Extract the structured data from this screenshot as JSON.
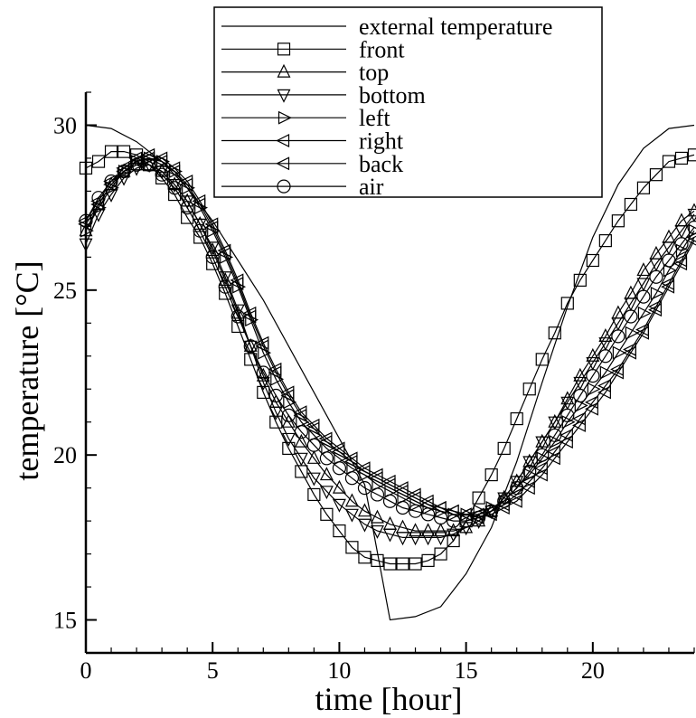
{
  "chart_data": {
    "type": "line",
    "title": "",
    "xlabel": "time [hour]",
    "ylabel": "temperature [°C]",
    "xlim": [
      0,
      24
    ],
    "ylim": [
      14,
      31
    ],
    "x_ticks": [
      0,
      5,
      10,
      15,
      20
    ],
    "y_ticks": [
      15,
      20,
      25,
      30
    ],
    "grid": false,
    "legend_position": "top-right",
    "series": [
      {
        "name": "external temperature",
        "marker": "none",
        "x": [
          0,
          1,
          2,
          3,
          4,
          5,
          6,
          7,
          8,
          9,
          10,
          11,
          12,
          13,
          14,
          15,
          16,
          17,
          18,
          19,
          20,
          21,
          22,
          23,
          24
        ],
        "y": [
          30.0,
          29.9,
          29.5,
          28.9,
          28.1,
          27.1,
          25.9,
          24.7,
          23.3,
          21.9,
          20.5,
          19.1,
          15.0,
          15.1,
          15.4,
          16.4,
          17.8,
          19.8,
          22.2,
          24.5,
          26.6,
          28.2,
          29.3,
          29.9,
          30.0
        ]
      },
      {
        "name": "front",
        "marker": "square",
        "x": [
          0,
          0.5,
          1,
          1.5,
          2,
          2.5,
          3,
          3.5,
          4,
          4.5,
          5,
          5.5,
          6,
          6.5,
          7,
          7.5,
          8,
          8.5,
          9,
          9.5,
          10,
          10.5,
          11,
          11.5,
          12,
          12.5,
          13,
          13.5,
          14,
          14.5,
          15,
          15.5,
          16,
          16.5,
          17,
          17.5,
          18,
          18.5,
          19,
          19.5,
          20,
          20.5,
          21,
          21.5,
          22,
          22.5,
          23,
          23.5,
          24
        ],
        "y": [
          28.7,
          28.9,
          29.2,
          29.2,
          29.1,
          28.8,
          28.4,
          27.9,
          27.2,
          26.6,
          25.8,
          24.9,
          23.9,
          22.9,
          21.9,
          21.0,
          20.2,
          19.5,
          18.8,
          18.2,
          17.7,
          17.2,
          16.9,
          16.8,
          16.7,
          16.7,
          16.7,
          16.8,
          17.0,
          17.4,
          18.0,
          18.7,
          19.4,
          20.2,
          21.1,
          22.0,
          22.9,
          23.7,
          24.6,
          25.3,
          25.9,
          26.5,
          27.1,
          27.6,
          28.1,
          28.5,
          28.9,
          29.0,
          29.1
        ]
      },
      {
        "name": "top",
        "marker": "triangle-up",
        "x": [
          0,
          0.5,
          1,
          1.5,
          2,
          2.5,
          3,
          3.5,
          4,
          4.5,
          5,
          5.5,
          6,
          6.5,
          7,
          7.5,
          8,
          8.5,
          9,
          9.5,
          10,
          10.5,
          11,
          11.5,
          12,
          12.5,
          13,
          13.5,
          14,
          14.5,
          15,
          15.5,
          16,
          16.5,
          17,
          17.5,
          18,
          18.5,
          19,
          19.5,
          20,
          20.5,
          21,
          21.5,
          22,
          22.5,
          23,
          23.5,
          24
        ],
        "y": [
          26.8,
          27.6,
          28.2,
          28.6,
          28.8,
          28.8,
          28.6,
          28.2,
          27.7,
          27.0,
          26.2,
          25.3,
          24.3,
          23.3,
          22.4,
          21.6,
          21.0,
          20.4,
          19.9,
          19.4,
          19.0,
          18.6,
          18.3,
          18.1,
          17.9,
          17.8,
          17.7,
          17.7,
          17.7,
          17.7,
          17.8,
          18.0,
          18.3,
          18.7,
          19.2,
          19.8,
          20.4,
          21.0,
          21.7,
          22.4,
          23.0,
          23.6,
          24.3,
          24.9,
          25.6,
          26.1,
          26.6,
          27.1,
          27.4
        ]
      },
      {
        "name": "bottom",
        "marker": "triangle-down",
        "x": [
          0,
          0.5,
          1,
          1.5,
          2,
          2.5,
          3,
          3.5,
          4,
          4.5,
          5,
          5.5,
          6,
          6.5,
          7,
          7.5,
          8,
          8.5,
          9,
          9.5,
          10,
          10.5,
          11,
          11.5,
          12,
          12.5,
          13,
          13.5,
          14,
          14.5,
          15,
          15.5,
          16,
          16.5,
          17,
          17.5,
          18,
          18.5,
          19,
          19.5,
          20,
          20.5,
          21,
          21.5,
          22,
          22.5,
          23,
          23.5,
          24
        ],
        "y": [
          26.4,
          27.3,
          27.9,
          28.4,
          28.7,
          28.8,
          28.6,
          28.2,
          27.7,
          27.0,
          26.3,
          25.4,
          24.4,
          23.3,
          22.2,
          21.3,
          20.5,
          19.9,
          19.3,
          18.9,
          18.5,
          18.2,
          17.9,
          17.7,
          17.6,
          17.5,
          17.5,
          17.5,
          17.5,
          17.6,
          17.8,
          18.0,
          18.3,
          18.7,
          19.2,
          19.8,
          20.4,
          21.0,
          21.6,
          22.2,
          22.8,
          23.4,
          24.0,
          24.6,
          25.2,
          25.8,
          26.3,
          26.8,
          27.3
        ]
      },
      {
        "name": "left",
        "marker": "triangle-right",
        "x": [
          0,
          0.5,
          1,
          1.5,
          2,
          2.5,
          3,
          3.5,
          4,
          4.5,
          5,
          5.5,
          6,
          6.5,
          7,
          7.5,
          8,
          8.5,
          9,
          9.5,
          10,
          10.5,
          11,
          11.5,
          12,
          12.5,
          13,
          13.5,
          14,
          14.5,
          15,
          15.5,
          16,
          16.5,
          17,
          17.5,
          18,
          18.5,
          19,
          19.5,
          20,
          20.5,
          21,
          21.5,
          22,
          22.5,
          23,
          23.5,
          24
        ],
        "y": [
          26.8,
          27.5,
          28.1,
          28.6,
          28.9,
          29.0,
          28.9,
          28.6,
          28.1,
          27.5,
          26.8,
          26.0,
          25.1,
          24.1,
          23.1,
          22.3,
          21.6,
          21.0,
          20.6,
          20.2,
          19.9,
          19.6,
          19.4,
          19.1,
          18.9,
          18.7,
          18.5,
          18.4,
          18.3,
          18.2,
          18.2,
          18.3,
          18.4,
          18.6,
          19.0,
          19.4,
          19.9,
          20.4,
          21.0,
          21.5,
          22.0,
          22.5,
          23.1,
          23.7,
          24.3,
          24.9,
          25.6,
          26.2,
          26.8
        ]
      },
      {
        "name": "right",
        "marker": "triangle-left",
        "x": [
          0,
          0.5,
          1,
          1.5,
          2,
          2.5,
          3,
          3.5,
          4,
          4.5,
          5,
          5.5,
          6,
          6.5,
          7,
          7.5,
          8,
          8.5,
          9,
          9.5,
          10,
          10.5,
          11,
          11.5,
          12,
          12.5,
          13,
          13.5,
          14,
          14.5,
          15,
          15.5,
          16,
          16.5,
          17,
          17.5,
          18,
          18.5,
          19,
          19.5,
          20,
          20.5,
          21,
          21.5,
          22,
          22.5,
          23,
          23.5,
          24
        ],
        "y": [
          27.0,
          27.6,
          28.2,
          28.6,
          28.9,
          29.0,
          28.9,
          28.6,
          28.2,
          27.6,
          26.9,
          26.1,
          25.2,
          24.2,
          23.3,
          22.5,
          21.8,
          21.2,
          20.8,
          20.4,
          20.1,
          19.8,
          19.5,
          19.3,
          19.1,
          18.9,
          18.7,
          18.5,
          18.4,
          18.3,
          18.2,
          18.2,
          18.3,
          18.5,
          18.8,
          19.2,
          19.6,
          20.1,
          20.6,
          21.1,
          21.6,
          22.1,
          22.6,
          23.2,
          23.8,
          24.5,
          25.2,
          25.9,
          26.6
        ]
      },
      {
        "name": "back",
        "marker": "triangle-left",
        "x": [
          0,
          0.5,
          1,
          1.5,
          2,
          2.5,
          3,
          3.5,
          4,
          4.5,
          5,
          5.5,
          6,
          6.5,
          7,
          7.5,
          8,
          8.5,
          9,
          9.5,
          10,
          10.5,
          11,
          11.5,
          12,
          12.5,
          13,
          13.5,
          14,
          14.5,
          15,
          15.5,
          16,
          16.5,
          17,
          17.5,
          18,
          18.5,
          19,
          19.5,
          20,
          20.5,
          21,
          21.5,
          22,
          22.5,
          23,
          23.5,
          24
        ],
        "y": [
          27.1,
          27.7,
          28.3,
          28.7,
          29.0,
          29.1,
          29.0,
          28.7,
          28.3,
          27.7,
          27.0,
          26.2,
          25.3,
          24.3,
          23.4,
          22.6,
          21.9,
          21.3,
          20.9,
          20.5,
          20.2,
          19.9,
          19.6,
          19.4,
          19.2,
          19.0,
          18.8,
          18.6,
          18.4,
          18.3,
          18.2,
          18.1,
          18.2,
          18.4,
          18.6,
          19.0,
          19.4,
          19.9,
          20.4,
          20.9,
          21.4,
          21.9,
          22.5,
          23.1,
          23.7,
          24.4,
          25.1,
          25.8,
          26.5
        ]
      },
      {
        "name": "air",
        "marker": "circle",
        "x": [
          0,
          0.5,
          1,
          1.5,
          2,
          2.5,
          3,
          3.5,
          4,
          4.5,
          5,
          5.5,
          6,
          6.5,
          7,
          7.5,
          8,
          8.5,
          9,
          9.5,
          10,
          10.5,
          11,
          11.5,
          12,
          12.5,
          13,
          13.5,
          14,
          14.5,
          15,
          15.5,
          16,
          16.5,
          17,
          17.5,
          18,
          18.5,
          19,
          19.5,
          20,
          20.5,
          21,
          21.5,
          22,
          22.5,
          23,
          23.5,
          24
        ],
        "y": [
          27.1,
          27.8,
          28.3,
          28.6,
          28.8,
          28.8,
          28.5,
          28.1,
          27.5,
          26.8,
          26.0,
          25.1,
          24.2,
          23.3,
          22.5,
          21.8,
          21.2,
          20.7,
          20.3,
          19.9,
          19.6,
          19.3,
          19.0,
          18.8,
          18.6,
          18.4,
          18.3,
          18.2,
          18.1,
          18.0,
          18.0,
          18.1,
          18.3,
          18.6,
          19.0,
          19.5,
          20.0,
          20.6,
          21.2,
          21.8,
          22.4,
          23.0,
          23.6,
          24.2,
          24.8,
          25.4,
          25.9,
          26.4,
          26.9
        ]
      }
    ]
  }
}
